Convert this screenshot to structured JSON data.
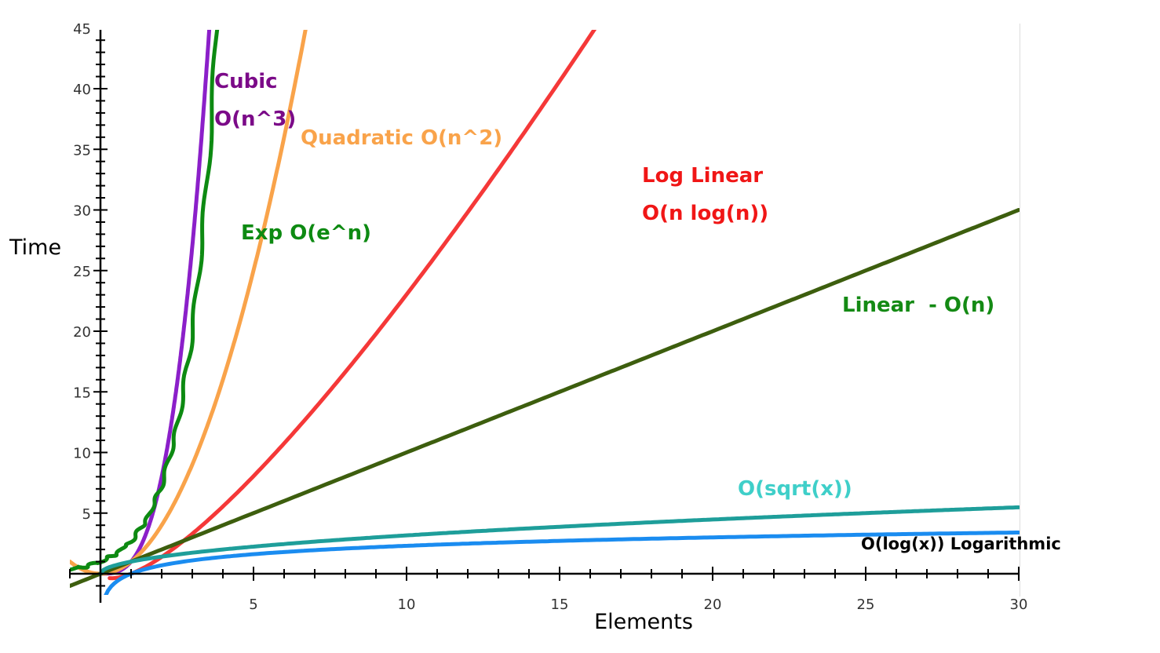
{
  "chart_data": {
    "type": "line",
    "xlabel": "Elements",
    "ylabel": "Time",
    "xlim": [
      -1,
      30
    ],
    "ylim": [
      -1,
      45
    ],
    "grid": false,
    "x_ticks": [
      5,
      10,
      15,
      20,
      25,
      30
    ],
    "y_ticks": [
      5,
      10,
      15,
      20,
      25,
      30,
      35,
      40,
      45
    ],
    "series": [
      {
        "key": "cubic",
        "color": "#8b1fc9",
        "function": "x^3",
        "domain": [
          0,
          3.56
        ]
      },
      {
        "key": "quadratic",
        "color": "#f9a34a",
        "function": "x^2",
        "domain": [
          -1,
          6.72
        ]
      },
      {
        "key": "exp",
        "color": "#0d8a12",
        "function": "e^x",
        "domain": [
          -1.5,
          4
        ],
        "hand_drawn": true
      },
      {
        "key": "loglinear",
        "color": "#f53838",
        "function": "x*log(x)",
        "domain": [
          0.3,
          30
        ]
      },
      {
        "key": "linear",
        "color": "#3d5e0e",
        "function": "x",
        "domain": [
          -1,
          30
        ]
      },
      {
        "key": "sqrt",
        "color": "#1e9e9a",
        "function": "sqrt(x)",
        "domain": [
          0,
          30
        ]
      },
      {
        "key": "log",
        "color": "#1a8cf0",
        "function": "log(x)",
        "domain": [
          0.05,
          30
        ]
      }
    ],
    "annotations": [
      {
        "key": "cubic_1",
        "text": "Cubic",
        "color": "#7b0a88"
      },
      {
        "key": "cubic_2",
        "text": "O(n^3)",
        "color": "#7b0a88"
      },
      {
        "key": "quadratic",
        "text": "Quadratic O(n^2)",
        "color": "#f9a34a"
      },
      {
        "key": "exp",
        "text": "Exp O(e^n)",
        "color": "#0d8a12"
      },
      {
        "key": "loglinear_1",
        "text": "Log Linear",
        "color": "#f01616"
      },
      {
        "key": "loglinear_2",
        "text": "O(n log(n))",
        "color": "#f01616"
      },
      {
        "key": "linear",
        "text": "Linear  - O(n)",
        "color": "#148a14"
      },
      {
        "key": "sqrt",
        "text": "O(sqrt(x))",
        "color": "#3fcfc9"
      },
      {
        "key": "log",
        "text": "O(log(x)) Logarithmic",
        "color": "#000000"
      }
    ]
  }
}
